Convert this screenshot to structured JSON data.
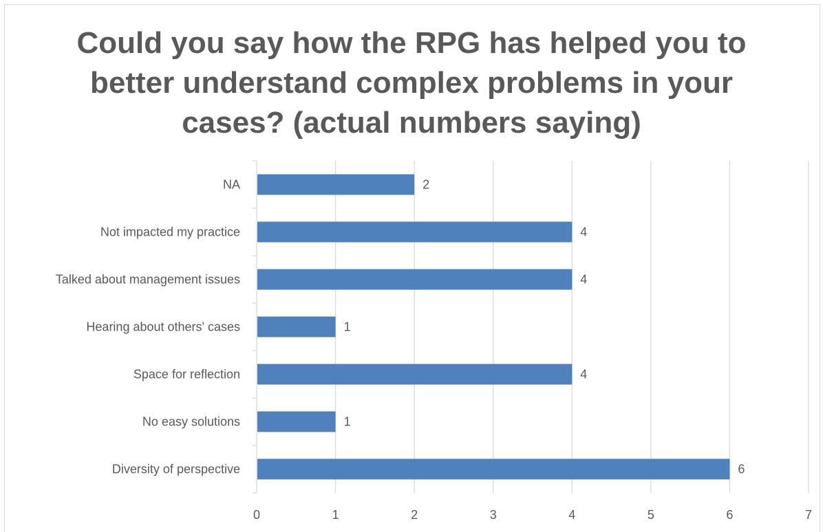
{
  "chart_data": {
    "type": "bar",
    "orientation": "horizontal",
    "title": "Could you say how the RPG has helped you to better understand complex problems in your cases? (actual numbers saying)",
    "categories": [
      "NA",
      "Not impacted my practice",
      "Talked about management issues",
      "Hearing about others' cases",
      "Space for reflection",
      "No easy solutions",
      "Diversity of perspective"
    ],
    "values": [
      2,
      4,
      4,
      1,
      4,
      1,
      6
    ],
    "data_labels": [
      "2",
      "4",
      "4",
      "1",
      "4",
      "1",
      "6"
    ],
    "xlim": [
      0,
      7
    ],
    "x_ticks": [
      "0",
      "1",
      "2",
      "3",
      "4",
      "5",
      "6",
      "7"
    ],
    "xlabel": "",
    "ylabel": "",
    "grid": "vertical",
    "legend": "none",
    "bar_color": "#4F81BD",
    "grid_color": "#d9d9d9",
    "text_color": "#595959"
  }
}
